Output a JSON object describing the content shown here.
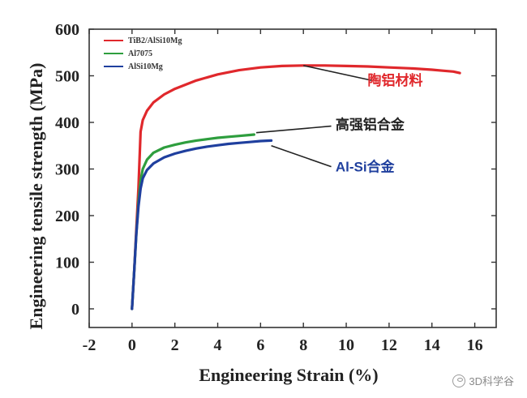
{
  "chart_data": {
    "type": "line",
    "ylabel": "Engineering tensile strength (MPa)",
    "xlabel": "Engineering Strain (%)",
    "xlim": [
      -2,
      17
    ],
    "ylim": [
      -40,
      600
    ],
    "xticks": [
      -2,
      0,
      2,
      4,
      6,
      8,
      10,
      12,
      14,
      16
    ],
    "yticks": [
      0,
      100,
      200,
      300,
      400,
      500,
      600
    ],
    "grid": false,
    "legend_position": "top-left",
    "series": [
      {
        "name": "TiB2/AlSi10Mg",
        "color": "#e0282c",
        "x": [
          0.0,
          0.1,
          0.2,
          0.3,
          0.35,
          0.4,
          0.5,
          0.7,
          1.0,
          1.5,
          2.0,
          3.0,
          4.0,
          5.0,
          6.0,
          7.0,
          8.0,
          9.0,
          10.0,
          11.0,
          12.0,
          13.0,
          14.0,
          14.5,
          15.0,
          15.3
        ],
        "y": [
          0,
          80,
          170,
          260,
          320,
          380,
          405,
          425,
          443,
          460,
          472,
          490,
          503,
          512,
          518,
          521,
          522,
          522,
          521,
          520,
          518,
          516,
          513,
          511,
          509,
          506
        ]
      },
      {
        "name": "Al7075",
        "color": "#2e9e3e",
        "x": [
          0.0,
          0.1,
          0.2,
          0.3,
          0.4,
          0.5,
          0.7,
          1.0,
          1.5,
          2.0,
          2.5,
          3.0,
          3.5,
          4.0,
          4.5,
          5.0,
          5.5,
          5.7
        ],
        "y": [
          0,
          80,
          160,
          230,
          275,
          300,
          320,
          335,
          346,
          352,
          357,
          361,
          364,
          367,
          369,
          371,
          373,
          374
        ]
      },
      {
        "name": "AlSi10Mg",
        "color": "#1f3f9e",
        "x": [
          0.0,
          0.1,
          0.2,
          0.3,
          0.4,
          0.5,
          0.7,
          1.0,
          1.5,
          2.0,
          2.5,
          3.0,
          3.5,
          4.0,
          4.5,
          5.0,
          5.5,
          6.0,
          6.5
        ],
        "y": [
          0,
          80,
          160,
          220,
          258,
          280,
          298,
          312,
          325,
          333,
          339,
          344,
          348,
          351,
          354,
          356,
          358,
          360,
          361
        ]
      }
    ],
    "annotations": [
      {
        "text": "陶铝材料",
        "color": "#e0282c",
        "x": 11.0,
        "y": 480,
        "arrow_from": [
          11.2,
          490
        ],
        "arrow_to": [
          8.0,
          522
        ]
      },
      {
        "text": "高强铝合金",
        "color": "#222222",
        "x": 9.5,
        "y": 385,
        "arrow_from": [
          9.3,
          392
        ],
        "arrow_to": [
          5.8,
          378
        ]
      },
      {
        "text": "Al-Si合金",
        "color": "#1f3f9e",
        "x": 9.5,
        "y": 295,
        "arrow_from": [
          9.3,
          305
        ],
        "arrow_to": [
          6.5,
          350
        ]
      }
    ]
  },
  "watermark": {
    "text": "3D科学谷",
    "icon": "wechat-icon"
  }
}
